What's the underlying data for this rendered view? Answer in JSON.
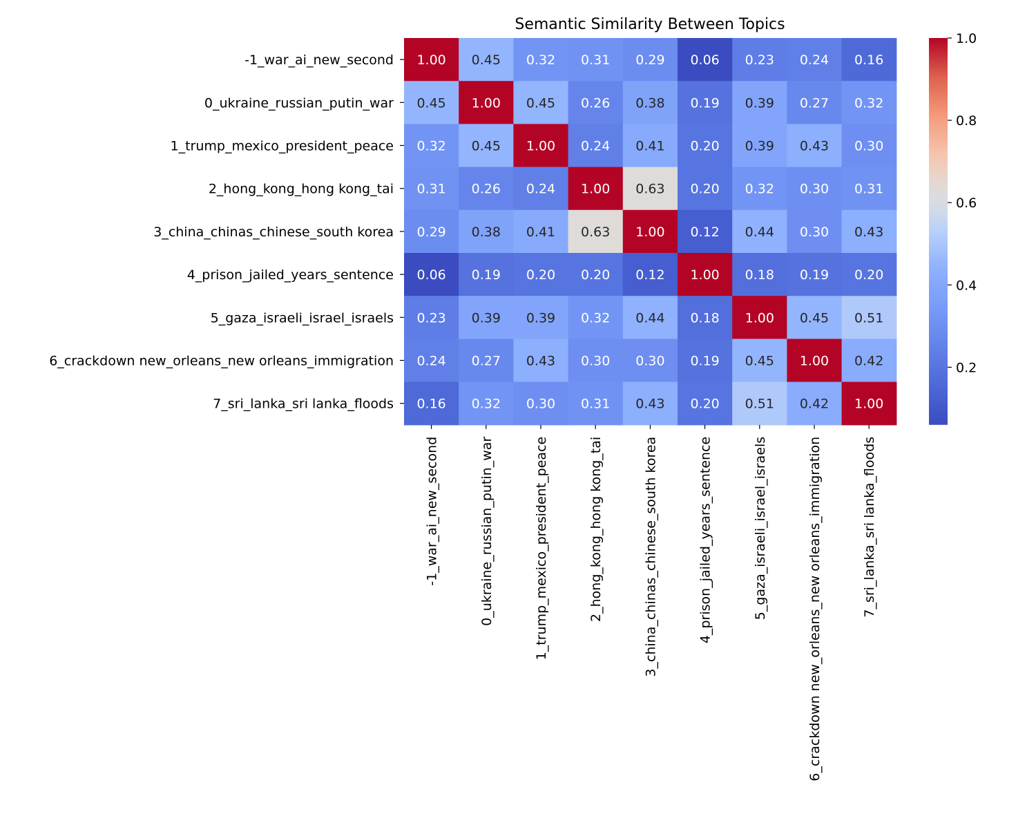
{
  "chart_data": {
    "type": "heatmap",
    "title": "Semantic Similarity Between Topics",
    "xlabel": "",
    "ylabel": "",
    "row_labels": [
      "-1_war_ai_new_second",
      "0_ukraine_russian_putin_war",
      "1_trump_mexico_president_peace",
      "2_hong_kong_hong kong_tai",
      "3_china_chinas_chinese_south korea",
      "4_prison_jailed_years_sentence",
      "5_gaza_israeli_israel_israels",
      "6_crackdown new_orleans_new orleans_immigration",
      "7_sri_lanka_sri lanka_floods"
    ],
    "column_labels": [
      "-1_war_ai_new_second",
      "0_ukraine_russian_putin_war",
      "1_trump_mexico_president_peace",
      "2_hong_kong_hong kong_tai",
      "3_china_chinas_chinese_south korea",
      "4_prison_jailed_years_sentence",
      "5_gaza_israeli_israel_israels",
      "6_crackdown new_orleans_new orleans_immigration",
      "7_sri_lanka_sri lanka_floods"
    ],
    "values": [
      [
        1.0,
        0.45,
        0.32,
        0.31,
        0.29,
        0.06,
        0.23,
        0.24,
        0.16
      ],
      [
        0.45,
        1.0,
        0.45,
        0.26,
        0.38,
        0.19,
        0.39,
        0.27,
        0.32
      ],
      [
        0.32,
        0.45,
        1.0,
        0.24,
        0.41,
        0.2,
        0.39,
        0.43,
        0.3
      ],
      [
        0.31,
        0.26,
        0.24,
        1.0,
        0.63,
        0.2,
        0.32,
        0.3,
        0.31
      ],
      [
        0.29,
        0.38,
        0.41,
        0.63,
        1.0,
        0.12,
        0.44,
        0.3,
        0.43
      ],
      [
        0.06,
        0.19,
        0.2,
        0.2,
        0.12,
        1.0,
        0.18,
        0.19,
        0.2
      ],
      [
        0.23,
        0.39,
        0.39,
        0.32,
        0.44,
        0.18,
        1.0,
        0.45,
        0.51
      ],
      [
        0.24,
        0.27,
        0.43,
        0.3,
        0.3,
        0.19,
        0.45,
        1.0,
        0.42
      ],
      [
        0.16,
        0.32,
        0.3,
        0.31,
        0.43,
        0.2,
        0.51,
        0.42,
        1.0
      ]
    ],
    "annotation_format": "0.00",
    "colormap": "coolwarm",
    "color_range": [
      0.06,
      1.0
    ],
    "colorbar": {
      "position": "right",
      "ticks": [
        0.2,
        0.4,
        0.6,
        0.8,
        1.0
      ],
      "tick_labels": [
        "0.2",
        "0.4",
        "0.6",
        "0.8",
        "1.0"
      ]
    },
    "grid": false,
    "legend": "none"
  }
}
